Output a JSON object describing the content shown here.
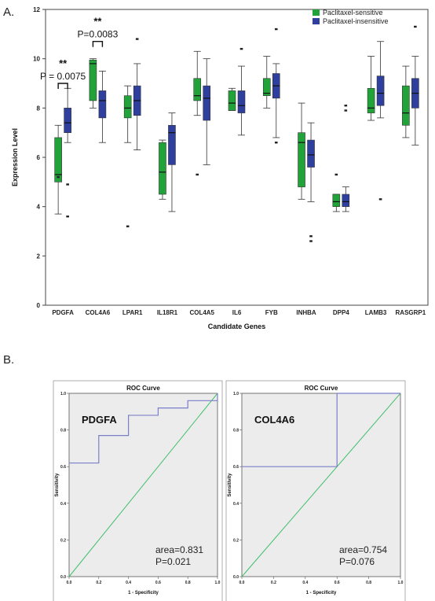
{
  "panel_a_label": "A.",
  "panel_b_label": "B.",
  "colors": {
    "sensitive": "#22a33a",
    "insensitive": "#2e3f9e",
    "roc_line": "#7b7fc9",
    "ref_line": "#3fbf6a",
    "plot_bg": "#ececec"
  },
  "chart_data": [
    {
      "type": "box",
      "title": "",
      "xlabel": "Candidate Genes",
      "ylabel": "Expression Level",
      "ylim": [
        0,
        12
      ],
      "yticks": [
        "0",
        "2",
        "4",
        "6",
        "8",
        "10",
        "12"
      ],
      "legend": {
        "position": "top-right",
        "entries": [
          "Paclitaxel-sensitive",
          "Paclitaxel-insensitive"
        ]
      },
      "categories": [
        "PDGFA",
        "COL4A6",
        "LPAR1",
        "IL18R1",
        "COL4A5",
        "IL6",
        "FYB",
        "INHBA",
        "DPP4",
        "LAMB3",
        "RASGRP1"
      ],
      "series": [
        {
          "name": "Paclitaxel-sensitive",
          "boxes": [
            {
              "min": 3.7,
              "q1": 5.0,
              "median": 5.3,
              "q3": 6.8,
              "max": 7.3,
              "outliers": [
                5.2
              ]
            },
            {
              "min": 8.0,
              "q1": 8.3,
              "median": 9.8,
              "q3": 9.95,
              "max": 10.0,
              "outliers": []
            },
            {
              "min": 6.6,
              "q1": 7.6,
              "median": 8.0,
              "q3": 8.5,
              "max": 8.9,
              "outliers": [
                3.2
              ]
            },
            {
              "min": 4.3,
              "q1": 4.5,
              "median": 5.4,
              "q3": 6.6,
              "max": 6.7,
              "outliers": []
            },
            {
              "min": 7.7,
              "q1": 8.3,
              "median": 8.5,
              "q3": 9.2,
              "max": 10.3,
              "outliers": [
                5.3
              ]
            },
            {
              "min": 7.9,
              "q1": 7.9,
              "median": 8.2,
              "q3": 8.7,
              "max": 8.8,
              "outliers": []
            },
            {
              "min": 8.0,
              "q1": 8.5,
              "median": 8.6,
              "q3": 9.2,
              "max": 10.1,
              "outliers": []
            },
            {
              "min": 4.3,
              "q1": 4.8,
              "median": 6.6,
              "q3": 7.0,
              "max": 8.2,
              "outliers": []
            },
            {
              "min": 3.8,
              "q1": 4.0,
              "median": 4.2,
              "q3": 4.5,
              "max": 4.5,
              "outliers": [
                5.3
              ]
            },
            {
              "min": 7.5,
              "q1": 7.8,
              "median": 8.0,
              "q3": 8.8,
              "max": 10.1,
              "outliers": []
            },
            {
              "min": 6.8,
              "q1": 7.3,
              "median": 7.8,
              "q3": 8.9,
              "max": 9.7,
              "outliers": []
            }
          ]
        },
        {
          "name": "Paclitaxel-insensitive",
          "boxes": [
            {
              "min": 6.6,
              "q1": 7.0,
              "median": 7.4,
              "q3": 8.0,
              "max": 8.8,
              "outliers": [
                4.9,
                3.6
              ]
            },
            {
              "min": 6.6,
              "q1": 7.6,
              "median": 8.3,
              "q3": 8.7,
              "max": 9.5,
              "outliers": []
            },
            {
              "min": 6.3,
              "q1": 7.7,
              "median": 8.3,
              "q3": 8.9,
              "max": 9.8,
              "outliers": [
                10.8
              ]
            },
            {
              "min": 3.8,
              "q1": 5.7,
              "median": 7.0,
              "q3": 7.3,
              "max": 7.8,
              "outliers": []
            },
            {
              "min": 5.7,
              "q1": 7.5,
              "median": 8.4,
              "q3": 8.9,
              "max": 10.0,
              "outliers": []
            },
            {
              "min": 6.9,
              "q1": 7.8,
              "median": 8.1,
              "q3": 8.7,
              "max": 9.7,
              "outliers": [
                10.4
              ]
            },
            {
              "min": 6.8,
              "q1": 8.4,
              "median": 8.9,
              "q3": 9.4,
              "max": 9.8,
              "outliers": [
                11.2,
                6.6
              ]
            },
            {
              "min": 4.2,
              "q1": 5.6,
              "median": 6.1,
              "q3": 6.7,
              "max": 7.4,
              "outliers": [
                2.8,
                2.6
              ]
            },
            {
              "min": 3.8,
              "q1": 4.0,
              "median": 4.2,
              "q3": 4.5,
              "max": 4.8,
              "outliers": [
                8.1,
                7.9
              ]
            },
            {
              "min": 7.6,
              "q1": 8.1,
              "median": 8.6,
              "q3": 9.3,
              "max": 10.7,
              "outliers": [
                4.3
              ]
            },
            {
              "min": 6.5,
              "q1": 8.0,
              "median": 8.6,
              "q3": 9.2,
              "max": 10.1,
              "outliers": [
                11.3
              ]
            }
          ]
        }
      ],
      "annotations": [
        {
          "category": "PDGFA",
          "p_text": "P = 0.0075",
          "stars": "**",
          "y": 9.0
        },
        {
          "category": "COL4A6",
          "p_text": "P=0.0083",
          "stars": "**",
          "y": 10.7
        }
      ]
    },
    {
      "type": "line",
      "title": "ROC Curve",
      "gene": "PDGFA",
      "xlabel": "1 - Specificity",
      "ylabel": "Sensitivity",
      "xlim": [
        0,
        1
      ],
      "ylim": [
        0,
        1
      ],
      "ticks": [
        "0.0",
        "0.2",
        "0.4",
        "0.6",
        "0.8",
        "1.0"
      ],
      "roc_points": [
        [
          0,
          0.62
        ],
        [
          0.2,
          0.62
        ],
        [
          0.2,
          0.77
        ],
        [
          0.4,
          0.77
        ],
        [
          0.4,
          0.88
        ],
        [
          0.6,
          0.88
        ],
        [
          0.6,
          0.92
        ],
        [
          0.8,
          0.92
        ],
        [
          0.8,
          0.96
        ],
        [
          1,
          0.96
        ],
        [
          1,
          1
        ]
      ],
      "area_text": "area=0.831",
      "p_text": "P=0.021"
    },
    {
      "type": "line",
      "title": "ROC Curve",
      "gene": "COL4A6",
      "xlabel": "1 - Specificity",
      "ylabel": "Sensitivity",
      "xlim": [
        0,
        1
      ],
      "ylim": [
        0,
        1
      ],
      "ticks": [
        "0.0",
        "0.2",
        "0.4",
        "0.6",
        "0.8",
        "1.0"
      ],
      "roc_points": [
        [
          0,
          0.6
        ],
        [
          0.6,
          0.6
        ],
        [
          0.6,
          1
        ],
        [
          1,
          1
        ]
      ],
      "area_text": "area=0.754",
      "p_text": "P=0.076"
    }
  ]
}
